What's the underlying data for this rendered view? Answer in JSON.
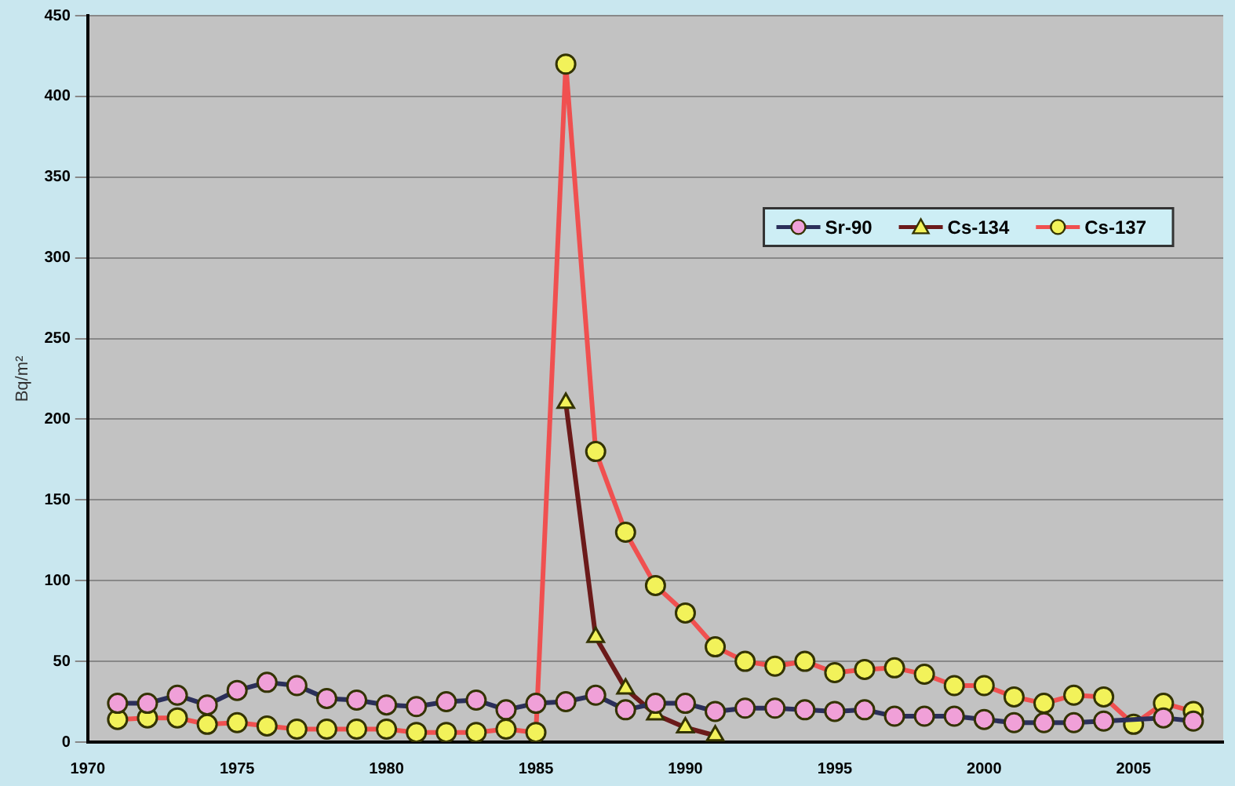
{
  "chart_data": {
    "type": "line",
    "ylabel": "Bq/m²",
    "xlim": [
      1970,
      2008
    ],
    "xticks": [
      1970,
      1975,
      1980,
      1985,
      1990,
      1995,
      2000,
      2005
    ],
    "ylim": [
      0,
      450
    ],
    "yticks": [
      0,
      50,
      100,
      150,
      200,
      250,
      300,
      350,
      400,
      450
    ],
    "grid": "y",
    "legend": "top right",
    "line_style": "solid",
    "x": [
      1971,
      1972,
      1973,
      1974,
      1975,
      1976,
      1977,
      1978,
      1979,
      1980,
      1981,
      1982,
      1983,
      1984,
      1985,
      1986,
      1987,
      1988,
      1989,
      1990,
      1991,
      1992,
      1993,
      1994,
      1995,
      1996,
      1997,
      1998,
      1999,
      2000,
      2001,
      2002,
      2003,
      2004,
      2005,
      2006,
      2007
    ],
    "series": [
      {
        "name": "Sr-90",
        "color": "#2b2f5a",
        "marker": "circle",
        "values": [
          24,
          24,
          29,
          23,
          32,
          37,
          35,
          27,
          26,
          23,
          22,
          25,
          26,
          20,
          24,
          25,
          29,
          20,
          24,
          24,
          19,
          21,
          21,
          20,
          19,
          20,
          16,
          16,
          16,
          14,
          12,
          12,
          12,
          13,
          null,
          15,
          13
        ]
      },
      {
        "name": "Cs-134",
        "color": "#6b1a1a",
        "marker": "triangle",
        "x": [
          1986,
          1987,
          1988,
          1989,
          1990,
          1991
        ],
        "values": [
          210,
          65,
          33,
          17,
          9,
          4
        ]
      },
      {
        "name": "Cs-137",
        "color": "#f05050",
        "marker": "circle",
        "values": [
          14,
          15,
          15,
          11,
          12,
          10,
          8,
          8,
          8,
          8,
          6,
          6,
          6,
          8,
          6,
          420,
          180,
          130,
          97,
          80,
          59,
          50,
          47,
          50,
          43,
          45,
          46,
          42,
          35,
          35,
          28,
          24,
          29,
          28,
          11,
          24,
          19
        ]
      }
    ]
  }
}
